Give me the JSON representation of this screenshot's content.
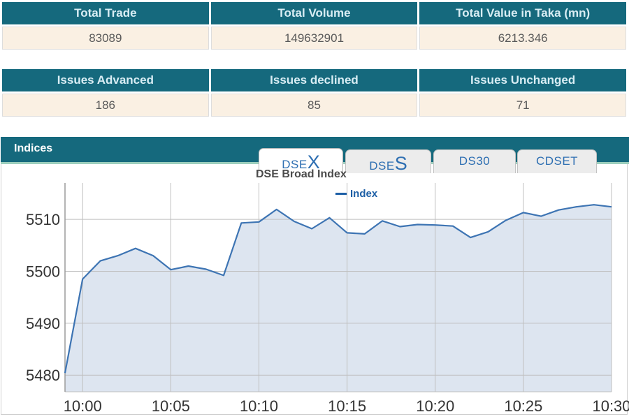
{
  "summary_table": {
    "headers": [
      "Total Trade",
      "Total Volume",
      "Total Value in Taka (mn)"
    ],
    "values": [
      "83089",
      "149632901",
      "6213.346"
    ]
  },
  "issues_table": {
    "headers": [
      "Issues Advanced",
      "Issues declined",
      "Issues Unchanged"
    ],
    "values": [
      "186",
      "85",
      "71"
    ]
  },
  "indices": {
    "title": "Indices",
    "tabs": [
      {
        "label_prefix": "DSE",
        "label_suffix": "X",
        "active": true
      },
      {
        "label_prefix": "DSE",
        "label_suffix": "S",
        "active": false
      },
      {
        "label_prefix": "DS30",
        "label_suffix": "",
        "active": false
      },
      {
        "label_prefix": "CDSET",
        "label_suffix": "",
        "active": false
      }
    ],
    "chart_title": "DSE Broad Index",
    "legend_label": "Index"
  },
  "chart_data": {
    "type": "area",
    "title": "DSE Broad Index",
    "legend": [
      "Index"
    ],
    "legend_position": "top",
    "grid": true,
    "x": [
      "9:59",
      "10:00",
      "10:01",
      "10:02",
      "10:03",
      "10:04",
      "10:05",
      "10:06",
      "10:07",
      "10:08",
      "10:09",
      "10:10",
      "10:11",
      "10:12",
      "10:13",
      "10:14",
      "10:15",
      "10:16",
      "10:17",
      "10:18",
      "10:19",
      "10:20",
      "10:21",
      "10:22",
      "10:23",
      "10:24",
      "10:25",
      "10:26",
      "10:27",
      "10:28",
      "10:29",
      "10:30"
    ],
    "values": [
      5480.4,
      5498.5,
      5502.0,
      5503.0,
      5504.4,
      5503.0,
      5500.3,
      5501.0,
      5500.4,
      5499.2,
      5509.3,
      5509.5,
      5511.9,
      5509.6,
      5508.2,
      5510.3,
      5507.4,
      5507.2,
      5509.7,
      5508.6,
      5509.0,
      5508.9,
      5508.7,
      5506.5,
      5507.6,
      5509.8,
      5511.3,
      5510.6,
      5511.8,
      5512.4,
      5512.8,
      5512.4
    ],
    "x_tick_labels": [
      "10:00",
      "10:05",
      "10:10",
      "10:15",
      "10:20",
      "10:25",
      "10:30"
    ],
    "y_ticks": [
      5480,
      5490,
      5500,
      5510
    ],
    "ylim": [
      5476.8,
      5517.0
    ],
    "xlabel": "",
    "ylabel": "",
    "colors": {
      "line": "#3d74b3",
      "fill": "#dde5f0",
      "grid": "#bfbfbf",
      "axis": "#9b9b9b",
      "tick_text": "#333333"
    }
  },
  "theme_colors": {
    "header_teal": "#15697d",
    "accent_mint": "#9ccfbd",
    "row_cream": "#faf0e3",
    "header_text": "#d8edf4",
    "tab_blue": "#2e6fb2",
    "legend_blue": "#1d5fa6"
  }
}
